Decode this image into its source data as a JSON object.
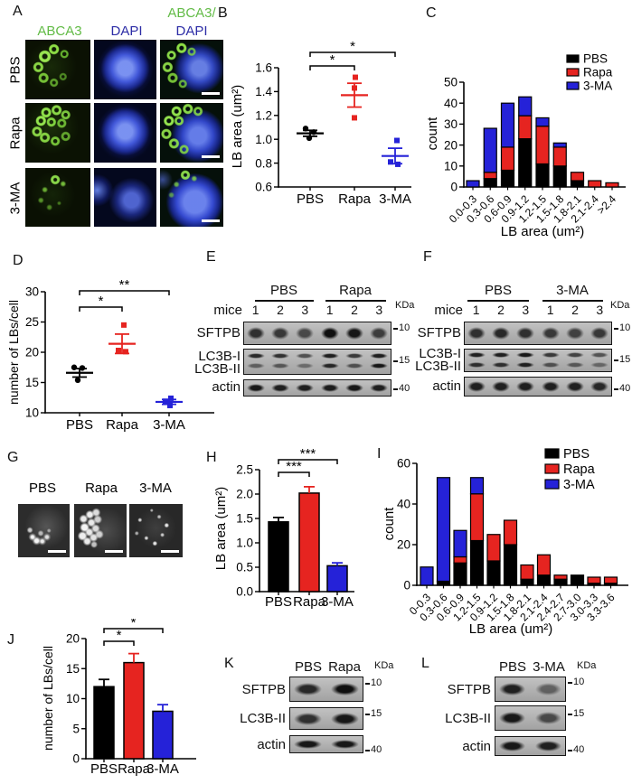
{
  "colors": {
    "pbs": "#000000",
    "rapa": "#e62420",
    "three_ma": "#2522d8",
    "green_label": "#62bb46",
    "blue_label": "#2d2da6"
  },
  "panels": {
    "A": {
      "label": "A",
      "column_headers": [
        {
          "text": "ABCA3",
          "color": "green"
        },
        {
          "text": "DAPI",
          "color": "blue"
        },
        {
          "text_line1": "ABCA3/",
          "text_line2": "DAPI"
        }
      ],
      "row_labels": [
        "PBS",
        "Rapa",
        "3-MA"
      ]
    },
    "B": {
      "label": "B",
      "chart_data": {
        "type": "scatter",
        "ylabel": "LB area (um²)",
        "ylim": [
          0.6,
          1.6
        ],
        "yticks": [
          "0.6",
          "0.8",
          "1.0",
          "1.2",
          "1.4",
          "1.6"
        ],
        "categories": [
          "PBS",
          "Rapa",
          "3-MA"
        ],
        "groups": [
          {
            "name": "PBS",
            "color": "#000000",
            "marker": "circle",
            "points": [
              1.09,
              1.06,
              1.01
            ],
            "mean": 1.05,
            "sem": 0.025
          },
          {
            "name": "Rapa",
            "color": "#e62420",
            "marker": "square",
            "points": [
              1.52,
              1.43,
              1.18
            ],
            "mean": 1.37,
            "sem": 0.1
          },
          {
            "name": "3-MA",
            "color": "#2522d8",
            "marker": "square",
            "points": [
              0.99,
              0.81,
              0.79
            ],
            "mean": 0.86,
            "sem": 0.065
          }
        ],
        "sig": [
          {
            "between": [
              "PBS",
              "Rapa"
            ],
            "label": "*"
          },
          {
            "between": [
              "PBS",
              "3-MA"
            ],
            "label": "*"
          }
        ]
      }
    },
    "C": {
      "label": "C",
      "chart_data": {
        "type": "stacked-bar-histogram",
        "xlabel": "LB area (um²)",
        "ylabel": "count",
        "ylim": [
          0,
          50
        ],
        "yticks": [
          "0",
          "10",
          "20",
          "30",
          "40",
          "50"
        ],
        "bins": [
          "0.0-0.3",
          "0.3-0.6",
          "0.6-0.9",
          "0.9-1.2",
          "1.2-1.5",
          "1.5-1.8",
          "1.8-2.1",
          "2.1-2.4",
          ">2.4"
        ],
        "series": [
          {
            "name": "PBS",
            "color": "#000000",
            "values": [
              0,
              4,
              8,
              23,
              11,
              10,
              3,
              0,
              0
            ]
          },
          {
            "name": "Rapa",
            "color": "#e62420",
            "values": [
              0,
              3,
              11,
              11,
              18,
              9,
              4,
              3,
              2
            ]
          },
          {
            "name": "3-MA",
            "color": "#2522d8",
            "values": [
              3,
              21,
              21,
              9,
              4,
              2,
              0,
              0,
              0
            ]
          }
        ],
        "legend": [
          "PBS",
          "Rapa",
          "3-MA"
        ]
      }
    },
    "D": {
      "label": "D",
      "chart_data": {
        "type": "scatter",
        "ylabel": "number of LBs/cell",
        "ylim": [
          10,
          30
        ],
        "yticks": [
          "10",
          "15",
          "20",
          "25",
          "30"
        ],
        "categories": [
          "PBS",
          "Rapa",
          "3-MA"
        ],
        "groups": [
          {
            "name": "PBS",
            "color": "#000000",
            "marker": "circle",
            "points": [
              17.5,
              17.4,
              15.4
            ],
            "mean": 16.6,
            "sem": 0.7
          },
          {
            "name": "Rapa",
            "color": "#e62420",
            "marker": "square",
            "points": [
              24.5,
              20.3,
              20.1
            ],
            "mean": 21.4,
            "sem": 1.6
          },
          {
            "name": "3-MA",
            "color": "#2522d8",
            "marker": "square",
            "points": [
              12.4,
              11.9,
              11.2
            ],
            "mean": 11.8,
            "sem": 0.4
          }
        ],
        "sig": [
          {
            "between": [
              "PBS",
              "Rapa"
            ],
            "label": "*"
          },
          {
            "between": [
              "PBS",
              "3-MA"
            ],
            "label": "**"
          }
        ]
      }
    },
    "E": {
      "label": "E",
      "mice": "mice",
      "kda": "KDa",
      "groups": [
        {
          "name": "PBS",
          "lanes": [
            "1",
            "2",
            "3"
          ]
        },
        {
          "name": "Rapa",
          "lanes": [
            "1",
            "2",
            "3"
          ]
        }
      ],
      "rows": [
        {
          "labels": [
            "SFTPB"
          ],
          "marker": "10",
          "bands": "single",
          "intensity": [
            0.8,
            0.75,
            0.65,
            1.0,
            0.95,
            0.72
          ]
        },
        {
          "labels": [
            "LC3B-I",
            "LC3B-II"
          ],
          "marker": "15",
          "bands": "double",
          "upper": [
            0.85,
            0.8,
            0.62,
            0.9,
            0.75,
            0.9
          ],
          "lower": [
            0.5,
            0.55,
            0.42,
            0.85,
            0.6,
            0.95
          ]
        },
        {
          "labels": [
            "actin"
          ],
          "marker": "40",
          "bands": "single",
          "intensity": [
            0.95,
            0.9,
            0.9,
            0.92,
            0.95,
            0.9
          ]
        }
      ]
    },
    "F": {
      "label": "F",
      "mice": "mice",
      "kda": "KDa",
      "groups": [
        {
          "name": "PBS",
          "lanes": [
            "1",
            "2",
            "3"
          ]
        },
        {
          "name": "3-MA",
          "lanes": [
            "1",
            "2",
            "3"
          ]
        }
      ],
      "rows": [
        {
          "labels": [
            "SFTPB"
          ],
          "marker": "10",
          "bands": "single",
          "intensity": [
            0.8,
            0.85,
            0.8,
            0.75,
            0.7,
            0.75
          ]
        },
        {
          "labels": [
            "LC3B-I",
            "LC3B-II"
          ],
          "marker": "15",
          "bands": "double",
          "upper": [
            0.9,
            0.9,
            0.95,
            0.75,
            0.7,
            0.6
          ],
          "lower": [
            0.8,
            0.8,
            0.9,
            0.6,
            0.55,
            0.45
          ]
        },
        {
          "labels": [
            "actin"
          ],
          "marker": "40",
          "bands": "single",
          "intensity": [
            0.9,
            0.9,
            0.9,
            0.9,
            0.9,
            0.85
          ]
        }
      ]
    },
    "G": {
      "label": "G",
      "image_labels": [
        "PBS",
        "Rapa",
        "3-MA"
      ]
    },
    "H": {
      "label": "H",
      "chart_data": {
        "type": "bar",
        "ylabel": "LB area (um²)",
        "ylim": [
          0,
          2.5
        ],
        "yticks": [
          "0.0",
          "0.5",
          "1.0",
          "1.5",
          "2.0",
          "2.5"
        ],
        "categories": [
          "PBS",
          "Rapa",
          "3-MA"
        ],
        "values": [
          1.43,
          2.02,
          0.53
        ],
        "errors": [
          0.09,
          0.13,
          0.06
        ],
        "bar_colors": [
          "#000000",
          "#e62420",
          "#2522d8"
        ],
        "sig": [
          {
            "between": [
              "PBS",
              "Rapa"
            ],
            "label": "***"
          },
          {
            "between": [
              "PBS",
              "3-MA"
            ],
            "label": "***"
          }
        ]
      }
    },
    "I": {
      "label": "I",
      "chart_data": {
        "type": "stacked-bar-histogram",
        "xlabel": "LB area (um²)",
        "ylabel": "count",
        "ylim": [
          0,
          60
        ],
        "yticks": [
          "0",
          "20",
          "40",
          "60"
        ],
        "bins": [
          "0-0.3",
          "0.3-0.6",
          "0.6-0.9",
          "1.2-1.5",
          "0.9-1.2",
          "1.5-1.8",
          "1.8-2.1",
          "2.1-2.4",
          "2.4-2.7",
          "2.7-3.0",
          "3.0-3.3",
          "3.3-3.6"
        ],
        "series": [
          {
            "name": "PBS",
            "color": "#000000",
            "values": [
              0,
              2,
              11,
              22,
              12,
              20,
              3,
              5,
              3,
              5,
              1,
              1
            ]
          },
          {
            "name": "Rapa",
            "color": "#e62420",
            "values": [
              0,
              0,
              3,
              23,
              13,
              12,
              7,
              10,
              2,
              0,
              3,
              3
            ]
          },
          {
            "name": "3-MA",
            "color": "#2522d8",
            "values": [
              9,
              51,
              13,
              8,
              0,
              0,
              0,
              0,
              0,
              0,
              0,
              0
            ]
          }
        ],
        "legend": [
          "PBS",
          "Rapa",
          "3-MA"
        ]
      }
    },
    "J": {
      "label": "J",
      "chart_data": {
        "type": "bar",
        "ylabel": "number of LBs/cell",
        "ylim": [
          0,
          20
        ],
        "yticks": [
          "0",
          "5",
          "10",
          "15",
          "20"
        ],
        "categories": [
          "PBS",
          "Rapa",
          "3-MA"
        ],
        "values": [
          12.0,
          16.0,
          7.9
        ],
        "errors": [
          1.2,
          1.5,
          1.1
        ],
        "bar_colors": [
          "#000000",
          "#e62420",
          "#2522d8"
        ],
        "sig": [
          {
            "between": [
              "PBS",
              "Rapa"
            ],
            "label": "*"
          },
          {
            "between": [
              "PBS",
              "3-MA"
            ],
            "label": "*"
          }
        ]
      }
    },
    "K": {
      "label": "K",
      "kda": "KDa",
      "groups": [
        {
          "name": "PBS",
          "lanes": []
        },
        {
          "name": "Rapa",
          "lanes": []
        }
      ],
      "rows": [
        {
          "labels": [
            "SFTPB"
          ],
          "marker": "10",
          "bands": "single",
          "intensity": [
            0.85,
            1.0
          ]
        },
        {
          "labels": [
            "LC3B-II"
          ],
          "marker": "15",
          "bands": "single",
          "intensity": [
            0.8,
            0.95
          ]
        },
        {
          "labels": [
            "actin"
          ],
          "marker": "40",
          "bands": "single",
          "intensity": [
            0.95,
            0.95
          ]
        }
      ]
    },
    "L": {
      "label": "L",
      "kda": "KDa",
      "groups": [
        {
          "name": "PBS",
          "lanes": []
        },
        {
          "name": "3-MA",
          "lanes": []
        }
      ],
      "rows": [
        {
          "labels": [
            "SFTPB"
          ],
          "marker": "10",
          "bands": "single",
          "intensity": [
            0.9,
            0.5
          ]
        },
        {
          "labels": [
            "LC3B-II"
          ],
          "marker": "15",
          "bands": "single",
          "intensity": [
            0.95,
            0.65
          ]
        },
        {
          "labels": [
            "actin"
          ],
          "marker": "40",
          "bands": "single",
          "intensity": [
            0.95,
            0.9
          ]
        }
      ]
    }
  }
}
